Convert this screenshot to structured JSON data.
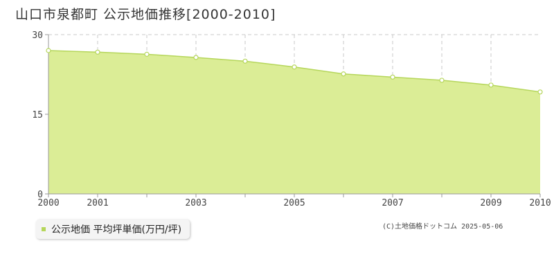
{
  "title": "山口市泉都町 公示地価推移[2000-2010]",
  "legend": {
    "label": "公示地価 平均坪単価(万円/坪)"
  },
  "copyright": "(C)土地価格ドットコム 2025-05-06",
  "colors": {
    "fill": "#dbed96",
    "line": "#b5d65a",
    "marker_fill": "#ffffff",
    "grid": "#c8c8c8",
    "axis": "#999999"
  },
  "chart_data": {
    "type": "area",
    "title": "山口市泉都町 公示地価推移[2000-2010]",
    "xlabel": "",
    "ylabel": "",
    "x": [
      2000,
      2001,
      2002,
      2003,
      2004,
      2005,
      2006,
      2007,
      2008,
      2009,
      2010
    ],
    "x_tick_labels": [
      "2000",
      "2001",
      "2003",
      "2005",
      "2007",
      "2009",
      "2010"
    ],
    "y_ticks": [
      0,
      15,
      30
    ],
    "ylim": [
      0,
      30
    ],
    "series": [
      {
        "name": "公示地価 平均坪単価(万円/坪)",
        "values": [
          27.0,
          26.7,
          26.3,
          25.7,
          25.0,
          23.9,
          22.6,
          22.0,
          21.4,
          20.5,
          19.2
        ]
      }
    ],
    "grid": true,
    "legend_position": "bottom-left"
  }
}
